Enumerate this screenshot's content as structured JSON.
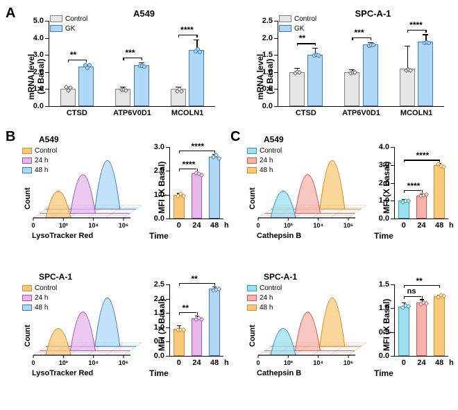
{
  "colors": {
    "control_fill": "#e6e6e6",
    "control_border": "#808080",
    "gk_fill": "#aed8f5",
    "gk_border": "#3b7cc0",
    "lyso_control_fill": "#f9c978",
    "lyso_control_border": "#d88b1e",
    "lyso_24_fill": "#e6b7e9",
    "lyso_24_border": "#a94fb3",
    "lyso_48_fill": "#aed8f5",
    "lyso_48_border": "#3b7cc0",
    "catb_control_fill": "#9edff2",
    "catb_control_border": "#2a9dc2",
    "catb_24_fill": "#f6b4ac",
    "catb_24_border": "#d4574a",
    "catb_48_fill": "#f9c978",
    "catb_48_border": "#d88b1e",
    "grid": "#d0d0d0"
  },
  "panelA": {
    "a549": {
      "title": "A549",
      "ymax": 5.0,
      "ytick": 1.0,
      "ylabel": "mRNA level\n(X Basal)",
      "legend": [
        "Control",
        "GK"
      ],
      "cats": [
        "CTSD",
        "ATP6V0D1",
        "MCOLN1"
      ],
      "control": [
        1.0,
        1.0,
        1.0
      ],
      "gk": [
        2.3,
        2.4,
        3.3
      ],
      "control_err": [
        0.1,
        0.1,
        0.1
      ],
      "gk_err": [
        0.1,
        0.12,
        0.55
      ],
      "sig": [
        "**",
        "***",
        "****"
      ]
    },
    "spca1": {
      "title": "SPC-A-1",
      "ymax": 2.5,
      "ytick": 0.5,
      "ylabel": "mRNA level\n(X Basal)",
      "legend": [
        "Control",
        "GK"
      ],
      "cats": [
        "CTSD",
        "ATP6V0D1",
        "MCOLN1"
      ],
      "control": [
        1.0,
        1.0,
        1.1
      ],
      "gk": [
        1.5,
        1.8,
        1.9
      ],
      "control_err": [
        0.1,
        0.05,
        0.65
      ],
      "gk_err": [
        0.18,
        0.05,
        0.18
      ],
      "sig": [
        "**",
        "***",
        "****"
      ]
    }
  },
  "panelB": {
    "a549": {
      "flow_title": "A549",
      "flow_xlab": "LysoTracker Red",
      "flow_ylab": "Count",
      "legend": [
        "Control",
        "24 h",
        "48 h"
      ],
      "bar": {
        "ymax": 3.0,
        "ytick": 1.0,
        "ylabel": "MFI (X Basal)",
        "xlabel_prefix": "Time",
        "xlabel_suffix": "h",
        "cats": [
          "0",
          "24",
          "48"
        ],
        "vals": [
          1.0,
          1.9,
          2.6
        ],
        "errs": [
          0.03,
          0.03,
          0.08
        ],
        "sig1": "****",
        "sig2": "****"
      }
    },
    "spca1": {
      "flow_title": "SPC-A-1",
      "flow_xlab": "LysoTracker Red",
      "flow_ylab": "Count",
      "legend": [
        "Control",
        "24 h",
        "48 h"
      ],
      "bar": {
        "ymax": 2.5,
        "ytick": 0.5,
        "ylabel": "MFI (X Basal)",
        "xlabel_prefix": "Time",
        "xlabel_suffix": "h",
        "cats": [
          "0",
          "24",
          "48"
        ],
        "vals": [
          0.95,
          1.3,
          2.35
        ],
        "errs": [
          0.1,
          0.08,
          0.05
        ],
        "sig1": "**",
        "sig2": "**"
      }
    }
  },
  "panelC": {
    "a549": {
      "flow_title": "A549",
      "flow_xlab": "Cathepsin B",
      "flow_ylab": "Count",
      "legend": [
        "Control",
        "24 h",
        "48 h"
      ],
      "bar": {
        "ymax": 4.0,
        "ytick": 1.0,
        "ylabel": "MFI (X Basal)",
        "xlabel_prefix": "Time",
        "xlabel_suffix": "h",
        "cats": [
          "0",
          "24",
          "48"
        ],
        "vals": [
          1.0,
          1.3,
          3.0
        ],
        "errs": [
          0.05,
          0.05,
          0.05
        ],
        "sig1": "****",
        "sig2": "****"
      }
    },
    "spca1": {
      "flow_title": "SPC-A-1",
      "flow_xlab": "Cathepsin B",
      "flow_ylab": "Count",
      "legend": [
        "Control",
        "24 h",
        "48 h"
      ],
      "bar": {
        "ymax": 1.5,
        "ytick": 0.5,
        "ylabel": "MFI (X Basal)",
        "xlabel_prefix": "Time",
        "xlabel_suffix": "h",
        "cats": [
          "0",
          "24",
          "48"
        ],
        "vals": [
          1.03,
          1.12,
          1.25
        ],
        "errs": [
          0.08,
          0.05,
          0.02
        ],
        "sig1": "ns",
        "sig2": "**"
      }
    }
  },
  "flow_log_ticks": [
    "0",
    "10²",
    "10⁴",
    "10⁶"
  ]
}
